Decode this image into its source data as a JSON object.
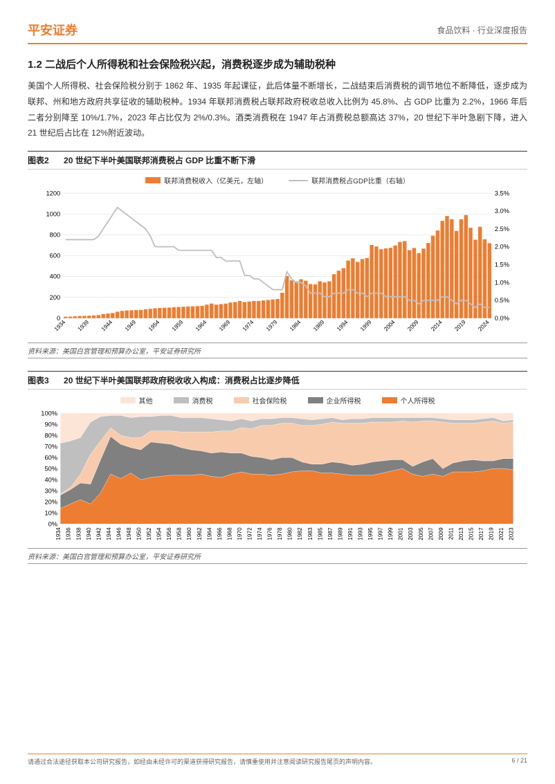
{
  "header": {
    "logo": "平安证券",
    "right": "食品饮料 · 行业深度报告"
  },
  "section": {
    "title": "1.2 二战后个人所得税和社会保险税兴起，消费税逐步成为辅助税种",
    "body": "美国个人所得税、社会保险税分别于 1862 年、1935 年起课征，此后体量不断增长，二战结束后消费税的调节地位不断降低，逐步成为联邦、州和地方政府共享征收的辅助税种。1934 年联邦消费税占联邦政府税收总收入比例为 45.8%、占 GDP 比重为 2.2%，1966 年后二者分别降至 10%/1.7%，2023 年占比仅为 2%/0.3%。酒类消费税在 1947 年占消费税总额高达 37%，20 世纪下半叶急剧下降，进入 21 世纪后占比在 12%附近波动。"
  },
  "figure2": {
    "number": "图表2",
    "title": "20 世纪下半叶美国联邦消费税占 GDP 比重不断下滑",
    "legend_bar": "联邦消费税收入（亿美元，左轴）",
    "legend_line": "联邦消费税占GDP比重（右轴）",
    "source": "资料来源：美国白宫管理和预算办公室，平安证券研究所",
    "type": "combo-bar-line",
    "x_labels": [
      "1934",
      "1939",
      "1944",
      "1949",
      "1954",
      "1959",
      "1964",
      "1969",
      "1974",
      "1979",
      "1984",
      "1989",
      "1994",
      "1999",
      "2004",
      "2009",
      "2014",
      "2019",
      "2024"
    ],
    "y_left": {
      "min": 0,
      "max": 1200,
      "step": 200,
      "label": ""
    },
    "y_right": {
      "min": 0,
      "max": 0.035,
      "step": 0.005,
      "fmt": "pct"
    },
    "bar_color": "#ed7d31",
    "line_color": "#bfbfbf",
    "grid_color": "#d9d9d9",
    "bg": "#ffffff",
    "years": [
      1934,
      1935,
      1936,
      1937,
      1938,
      1939,
      1940,
      1941,
      1942,
      1943,
      1944,
      1945,
      1946,
      1947,
      1948,
      1949,
      1950,
      1951,
      1952,
      1953,
      1954,
      1955,
      1956,
      1957,
      1958,
      1959,
      1960,
      1961,
      1962,
      1963,
      1964,
      1965,
      1966,
      1967,
      1968,
      1969,
      1970,
      1971,
      1972,
      1973,
      1974,
      1975,
      1976,
      1977,
      1978,
      1979,
      1980,
      1981,
      1982,
      1983,
      1984,
      1985,
      1986,
      1987,
      1988,
      1989,
      1990,
      1991,
      1992,
      1993,
      1994,
      1995,
      1996,
      1997,
      1998,
      1999,
      2000,
      2001,
      2002,
      2003,
      2004,
      2005,
      2006,
      2007,
      2008,
      2009,
      2010,
      2011,
      2012,
      2013,
      2014,
      2015,
      2016,
      2017,
      2018,
      2019,
      2020,
      2021,
      2022,
      2023,
      2024
    ],
    "bars": [
      14,
      15,
      18,
      21,
      22,
      24,
      26,
      30,
      40,
      45,
      50,
      62,
      70,
      74,
      76,
      78,
      80,
      85,
      90,
      95,
      98,
      100,
      102,
      105,
      108,
      110,
      112,
      114,
      116,
      118,
      130,
      140,
      130,
      135,
      140,
      150,
      155,
      165,
      155,
      160,
      165,
      165,
      170,
      175,
      180,
      185,
      244,
      405,
      363,
      353,
      374,
      360,
      328,
      325,
      354,
      343,
      354,
      422,
      456,
      480,
      553,
      575,
      540,
      568,
      577,
      703,
      688,
      662,
      670,
      675,
      698,
      732,
      740,
      653,
      674,
      625,
      668,
      722,
      792,
      842,
      934,
      981,
      950,
      838,
      950,
      990,
      868,
      753,
      877,
      758,
      720
    ],
    "line_pct": [
      0.022,
      0.022,
      0.022,
      0.022,
      0.022,
      0.022,
      0.022,
      0.023,
      0.025,
      0.027,
      0.029,
      0.031,
      0.03,
      0.029,
      0.028,
      0.027,
      0.026,
      0.025,
      0.023,
      0.02,
      0.02,
      0.02,
      0.02,
      0.02,
      0.019,
      0.019,
      0.019,
      0.019,
      0.019,
      0.019,
      0.019,
      0.019,
      0.017,
      0.017,
      0.016,
      0.016,
      0.016,
      0.016,
      0.012,
      0.012,
      0.011,
      0.011,
      0.01,
      0.009,
      0.008,
      0.008,
      0.008,
      0.013,
      0.011,
      0.01,
      0.01,
      0.009,
      0.007,
      0.007,
      0.007,
      0.006,
      0.006,
      0.007,
      0.007,
      0.007,
      0.008,
      0.008,
      0.007,
      0.007,
      0.006,
      0.007,
      0.007,
      0.007,
      0.006,
      0.006,
      0.006,
      0.006,
      0.006,
      0.005,
      0.005,
      0.004,
      0.005,
      0.005,
      0.005,
      0.005,
      0.006,
      0.006,
      0.005,
      0.004,
      0.005,
      0.005,
      0.004,
      0.003,
      0.004,
      0.003,
      0.003
    ]
  },
  "figure3": {
    "number": "图表3",
    "title": "20 世纪下半叶美国联邦政府税收收入构成：消费税占比逐步降低",
    "source": "资料来源：美国白宫管理和预算办公室，平安证券研究所",
    "type": "stacked-area-100",
    "legend": [
      {
        "label": "其他",
        "color": "#fce4d6"
      },
      {
        "label": "消费税",
        "color": "#bfbfbf"
      },
      {
        "label": "社会保险税",
        "color": "#f8cbad"
      },
      {
        "label": "企业所得税",
        "color": "#808080"
      },
      {
        "label": "个人所得税",
        "color": "#ed7d31"
      }
    ],
    "y": {
      "min": 0,
      "max": 1,
      "step": 0.1,
      "fmt": "pct"
    },
    "years": [
      1934,
      1936,
      1938,
      1940,
      1942,
      1944,
      1946,
      1948,
      1950,
      1952,
      1954,
      1956,
      1958,
      1960,
      1962,
      1964,
      1966,
      1968,
      1970,
      1972,
      1974,
      1976,
      1978,
      1980,
      1982,
      1983,
      1985,
      1987,
      1989,
      1991,
      1993,
      1995,
      1997,
      1999,
      2001,
      2003,
      2005,
      2007,
      2009,
      2011,
      2013,
      2015,
      2017,
      2019,
      2021,
      2023
    ],
    "series_order": [
      "individual",
      "corporate",
      "social",
      "excise",
      "other"
    ],
    "colors": {
      "individual": "#ed7d31",
      "corporate": "#808080",
      "social": "#f8cbad",
      "excise": "#bfbfbf",
      "other": "#fce4d6"
    },
    "grid_color": "#d9d9d9",
    "data": {
      "individual": [
        0.14,
        0.18,
        0.22,
        0.18,
        0.28,
        0.45,
        0.41,
        0.46,
        0.4,
        0.42,
        0.43,
        0.44,
        0.44,
        0.44,
        0.45,
        0.43,
        0.42,
        0.45,
        0.47,
        0.45,
        0.45,
        0.44,
        0.45,
        0.47,
        0.48,
        0.48,
        0.46,
        0.46,
        0.45,
        0.44,
        0.44,
        0.44,
        0.46,
        0.48,
        0.5,
        0.45,
        0.43,
        0.45,
        0.43,
        0.47,
        0.47,
        0.47,
        0.48,
        0.5,
        0.5,
        0.49
      ],
      "corporate": [
        0.12,
        0.13,
        0.15,
        0.18,
        0.3,
        0.34,
        0.31,
        0.23,
        0.27,
        0.32,
        0.3,
        0.28,
        0.25,
        0.23,
        0.21,
        0.21,
        0.23,
        0.19,
        0.17,
        0.16,
        0.15,
        0.14,
        0.15,
        0.13,
        0.08,
        0.06,
        0.08,
        0.1,
        0.1,
        0.09,
        0.1,
        0.12,
        0.11,
        0.1,
        0.08,
        0.07,
        0.13,
        0.14,
        0.07,
        0.08,
        0.1,
        0.11,
        0.09,
        0.07,
        0.09,
        0.1
      ],
      "social": [
        0.01,
        0.02,
        0.08,
        0.27,
        0.17,
        0.08,
        0.08,
        0.09,
        0.11,
        0.1,
        0.11,
        0.12,
        0.14,
        0.16,
        0.17,
        0.19,
        0.19,
        0.2,
        0.23,
        0.25,
        0.29,
        0.31,
        0.31,
        0.31,
        0.33,
        0.35,
        0.36,
        0.36,
        0.36,
        0.38,
        0.37,
        0.36,
        0.35,
        0.34,
        0.35,
        0.4,
        0.37,
        0.34,
        0.42,
        0.36,
        0.34,
        0.33,
        0.35,
        0.36,
        0.32,
        0.33
      ],
      "excise": [
        0.46,
        0.42,
        0.33,
        0.29,
        0.22,
        0.11,
        0.18,
        0.18,
        0.19,
        0.13,
        0.14,
        0.14,
        0.13,
        0.13,
        0.13,
        0.12,
        0.1,
        0.09,
        0.08,
        0.07,
        0.06,
        0.06,
        0.05,
        0.05,
        0.06,
        0.05,
        0.05,
        0.04,
        0.03,
        0.04,
        0.04,
        0.04,
        0.04,
        0.04,
        0.03,
        0.04,
        0.03,
        0.03,
        0.03,
        0.03,
        0.03,
        0.03,
        0.03,
        0.03,
        0.02,
        0.02
      ],
      "other": [
        0.27,
        0.25,
        0.22,
        0.08,
        0.03,
        0.02,
        0.02,
        0.04,
        0.03,
        0.03,
        0.02,
        0.02,
        0.04,
        0.04,
        0.04,
        0.05,
        0.06,
        0.07,
        0.05,
        0.07,
        0.05,
        0.05,
        0.04,
        0.04,
        0.05,
        0.06,
        0.05,
        0.04,
        0.06,
        0.05,
        0.05,
        0.04,
        0.04,
        0.04,
        0.04,
        0.04,
        0.04,
        0.04,
        0.05,
        0.06,
        0.06,
        0.06,
        0.05,
        0.04,
        0.07,
        0.06
      ]
    }
  },
  "footer": {
    "disclaimer": "请通过合法途径获取本公司研究报告，如经由未经许可的渠道获得研究报告，请慎重使用并注意阅读研究报告尾页的声明内容。",
    "page": "6 / 21"
  }
}
